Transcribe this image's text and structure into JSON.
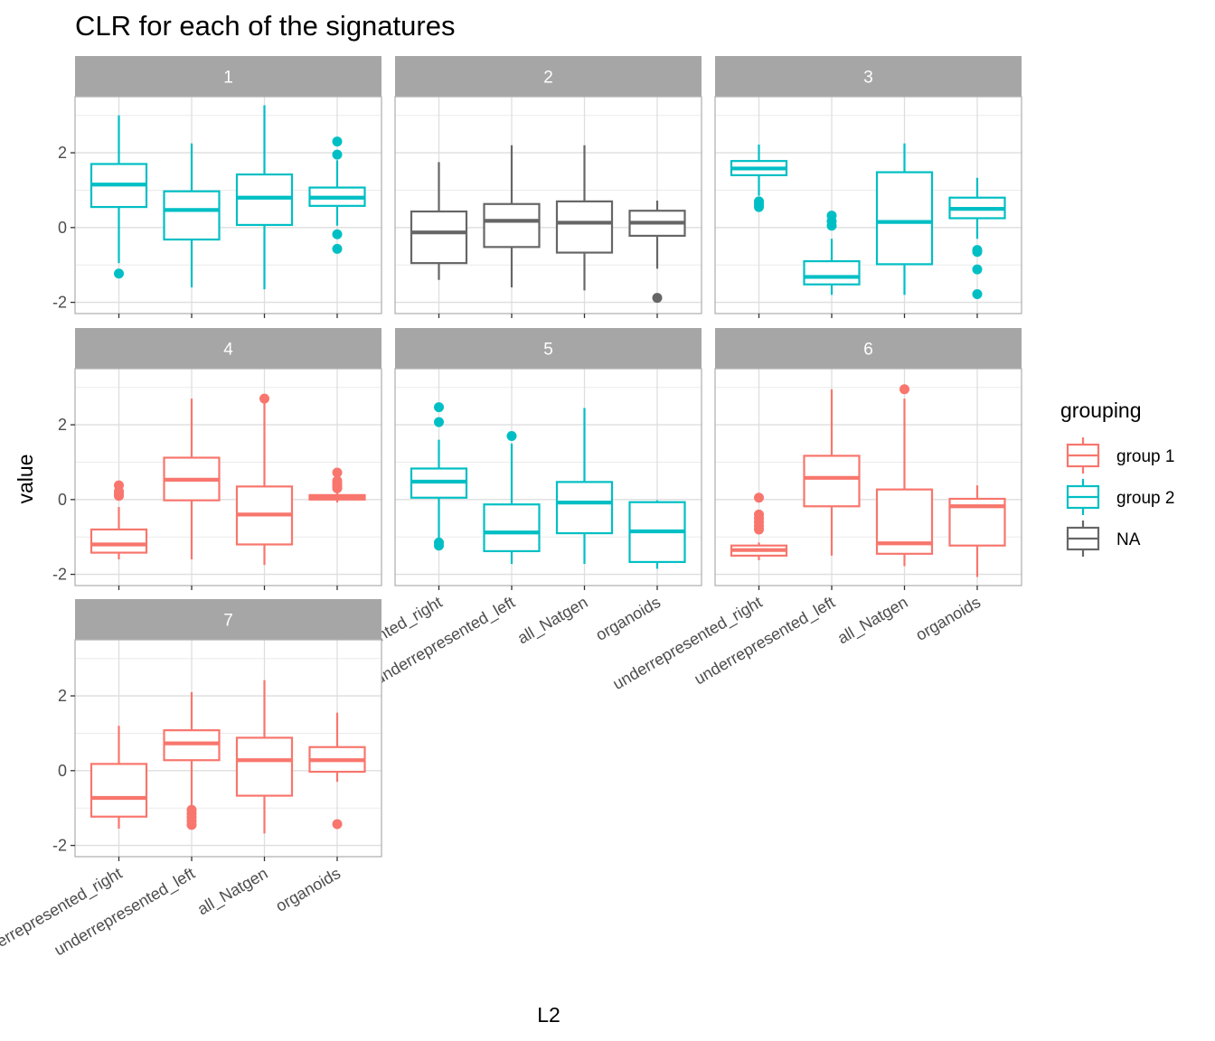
{
  "chart_data": {
    "type": "boxplot",
    "title": "CLR for each of the signatures",
    "xlabel": "L2",
    "ylabel": "value",
    "categories": [
      "underrepresented_right",
      "underrepresented_left",
      "all_Natgen",
      "organoids"
    ],
    "ylim": [
      -2.3,
      3.5
    ],
    "y_ticks": [
      -2,
      0,
      2
    ],
    "y_tick_labels": [
      "-2",
      "0",
      "2"
    ],
    "grid": true,
    "legend_placement": "right",
    "legend": {
      "title": "grouping",
      "entries": [
        {
          "label": "group 1",
          "color": "#F8766D"
        },
        {
          "label": "group 2",
          "color": "#00BFC4"
        },
        {
          "label": "NA",
          "color": "#666666"
        }
      ]
    },
    "panels": [
      {
        "strip": "1",
        "boxes": [
          {
            "group": "group 2",
            "q1": 0.55,
            "median": 1.15,
            "q3": 1.7,
            "low": -0.95,
            "high": 3.0,
            "outliers": [
              -1.23
            ]
          },
          {
            "group": "group 2",
            "q1": -0.32,
            "median": 0.47,
            "q3": 0.97,
            "low": -1.6,
            "high": 2.25,
            "outliers": []
          },
          {
            "group": "group 2",
            "q1": 0.07,
            "median": 0.8,
            "q3": 1.42,
            "low": -1.65,
            "high": 3.27,
            "outliers": []
          },
          {
            "group": "group 2",
            "q1": 0.58,
            "median": 0.8,
            "q3": 1.07,
            "low": 0.05,
            "high": 1.8,
            "outliers": [
              2.3,
              1.95,
              -0.18,
              -0.57
            ]
          }
        ]
      },
      {
        "strip": "2",
        "boxes": [
          {
            "group": "NA",
            "q1": -0.95,
            "median": -0.13,
            "q3": 0.43,
            "low": -1.4,
            "high": 1.75,
            "outliers": []
          },
          {
            "group": "NA",
            "q1": -0.52,
            "median": 0.18,
            "q3": 0.63,
            "low": -1.6,
            "high": 2.2,
            "outliers": []
          },
          {
            "group": "NA",
            "q1": -0.67,
            "median": 0.13,
            "q3": 0.7,
            "low": -1.68,
            "high": 2.2,
            "outliers": []
          },
          {
            "group": "NA",
            "q1": -0.22,
            "median": 0.13,
            "q3": 0.45,
            "low": -1.1,
            "high": 0.72,
            "outliers": [
              -1.88
            ]
          }
        ]
      },
      {
        "strip": "3",
        "boxes": [
          {
            "group": "group 2",
            "q1": 1.4,
            "median": 1.58,
            "q3": 1.78,
            "low": 0.85,
            "high": 2.22,
            "outliers": [
              0.7,
              0.62,
              0.55
            ]
          },
          {
            "group": "group 2",
            "q1": -1.52,
            "median": -1.32,
            "q3": -0.9,
            "low": -1.8,
            "high": -0.3,
            "outliers": [
              0.32,
              0.17,
              0.05
            ]
          },
          {
            "group": "group 2",
            "q1": -0.98,
            "median": 0.15,
            "q3": 1.48,
            "low": -1.8,
            "high": 2.25,
            "outliers": []
          },
          {
            "group": "group 2",
            "q1": 0.25,
            "median": 0.5,
            "q3": 0.8,
            "low": -0.3,
            "high": 1.33,
            "outliers": [
              -0.6,
              -0.65,
              -1.12,
              -1.78
            ]
          }
        ]
      },
      {
        "strip": "4",
        "boxes": [
          {
            "group": "group 1",
            "q1": -1.42,
            "median": -1.2,
            "q3": -0.8,
            "low": -1.6,
            "high": -0.2,
            "outliers": [
              0.38,
              0.22,
              0.15,
              0.1
            ]
          },
          {
            "group": "group 1",
            "q1": -0.02,
            "median": 0.53,
            "q3": 1.12,
            "low": -1.6,
            "high": 2.7,
            "outliers": []
          },
          {
            "group": "group 1",
            "q1": -1.2,
            "median": -0.4,
            "q3": 0.35,
            "low": -1.75,
            "high": 2.6,
            "outliers": [
              2.7
            ]
          },
          {
            "group": "group 1",
            "q1": 0.0,
            "median": 0.07,
            "q3": 0.12,
            "low": -0.08,
            "high": 0.2,
            "outliers": [
              0.72,
              0.5,
              0.42,
              0.35,
              0.3
            ]
          }
        ]
      },
      {
        "strip": "5",
        "boxes": [
          {
            "group": "group 2",
            "q1": 0.05,
            "median": 0.48,
            "q3": 0.83,
            "low": -1.1,
            "high": 1.6,
            "outliers": [
              2.47,
              2.07,
              -1.15,
              -1.23
            ]
          },
          {
            "group": "group 2",
            "q1": -1.38,
            "median": -0.88,
            "q3": -0.13,
            "low": -1.72,
            "high": 1.5,
            "outliers": [
              1.7
            ]
          },
          {
            "group": "group 2",
            "q1": -0.9,
            "median": -0.08,
            "q3": 0.47,
            "low": -1.72,
            "high": 2.45,
            "outliers": []
          },
          {
            "group": "group 2",
            "q1": -1.67,
            "median": -0.85,
            "q3": -0.07,
            "low": -1.85,
            "high": -0.02,
            "outliers": []
          }
        ]
      },
      {
        "strip": "6",
        "boxes": [
          {
            "group": "group 1",
            "q1": -1.5,
            "median": -1.35,
            "q3": -1.23,
            "low": -1.62,
            "high": -1.15,
            "outliers": [
              0.05,
              -0.4,
              -0.5,
              -0.6,
              -0.7,
              -0.8
            ]
          },
          {
            "group": "group 1",
            "q1": -0.18,
            "median": 0.58,
            "q3": 1.17,
            "low": -1.5,
            "high": 2.95,
            "outliers": []
          },
          {
            "group": "group 1",
            "q1": -1.45,
            "median": -1.17,
            "q3": 0.27,
            "low": -1.78,
            "high": 2.7,
            "outliers": [
              2.95
            ]
          },
          {
            "group": "group 1",
            "q1": -1.23,
            "median": -0.18,
            "q3": 0.02,
            "low": -2.07,
            "high": 0.38,
            "outliers": []
          }
        ]
      },
      {
        "strip": "7",
        "boxes": [
          {
            "group": "group 1",
            "q1": -1.23,
            "median": -0.73,
            "q3": 0.18,
            "low": -1.55,
            "high": 1.2,
            "outliers": []
          },
          {
            "group": "group 1",
            "q1": 0.28,
            "median": 0.73,
            "q3": 1.08,
            "low": -0.95,
            "high": 2.1,
            "outliers": [
              -1.05,
              -1.15,
              -1.25,
              -1.35,
              -1.45
            ]
          },
          {
            "group": "group 1",
            "q1": -0.67,
            "median": 0.28,
            "q3": 0.88,
            "low": -1.68,
            "high": 2.42,
            "outliers": []
          },
          {
            "group": "group 1",
            "q1": -0.03,
            "median": 0.28,
            "q3": 0.63,
            "low": -0.3,
            "high": 1.55,
            "outliers": [
              -1.43
            ]
          }
        ]
      }
    ]
  }
}
